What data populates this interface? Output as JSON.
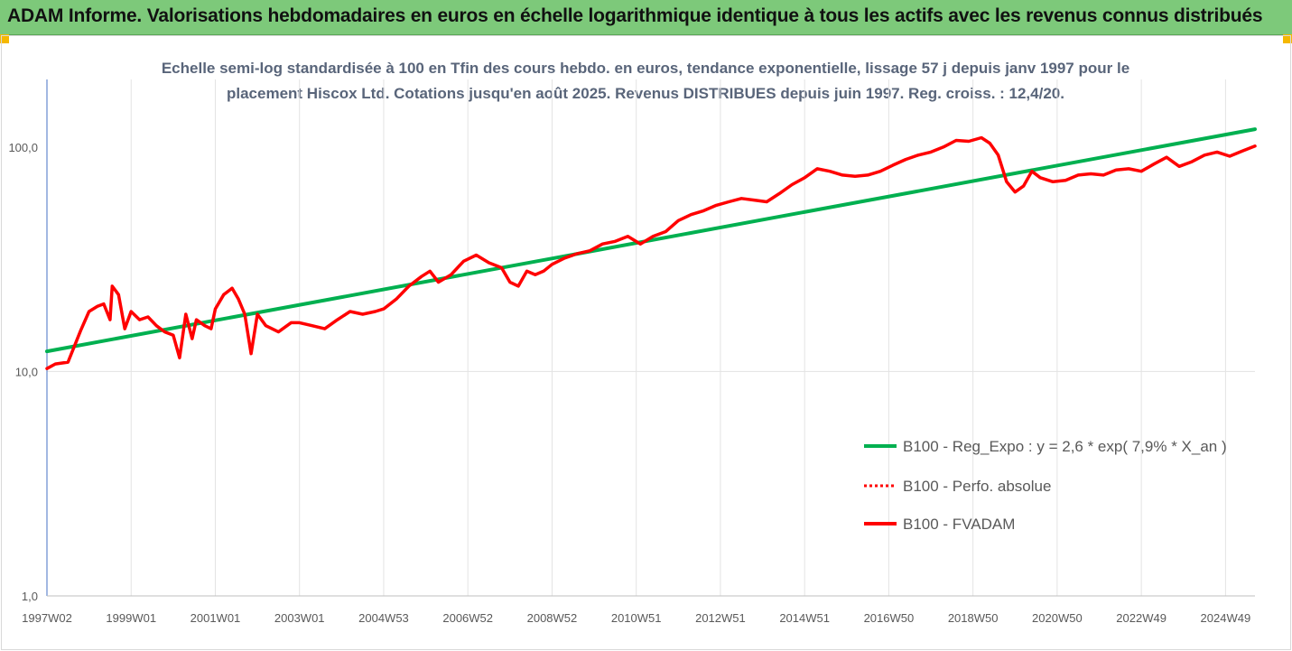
{
  "banner": {
    "title": "ADAM Informe. Valorisations hebdomadaires en euros en échelle logarithmique identique à tous les actifs avec les revenus connus distribués"
  },
  "colors": {
    "banner": "#7dc97a",
    "trend": "#00b050",
    "price": "#ff0000",
    "subtitle": "#59657a",
    "gridline": "#e3e3e3",
    "corner": "#f5b800"
  },
  "chart_data": {
    "type": "line",
    "title": "Echelle semi-log standardisée à 100 en Tfin des cours hebdo. en euros, tendance exponentielle, lissage 57 j depuis janv 1997 pour le placement Hiscox Ltd. Cotations jusqu'en août 2025.  Revenus DISTRIBUES depuis juin 1997. Reg. croiss. : 12,4/20.",
    "title_lines": [
      "Echelle semi-log standardisée à 100 en Tfin des cours hebdo. en euros, tendance exponentielle, lissage 57 j depuis janv 1997 pour le",
      "placement Hiscox Ltd. Cotations jusqu'en août 2025.  Revenus DISTRIBUES depuis juin 1997. Reg. croiss. : 12,4/20."
    ],
    "y_scale": "log",
    "ylim": [
      1,
      200
    ],
    "y_ticks": [
      "1,0",
      "10,0",
      "100,0"
    ],
    "y_tick_values": [
      1,
      10,
      100
    ],
    "xlim": [
      1997.0,
      2025.7
    ],
    "x_ticks": [
      "1997W02",
      "1999W01",
      "2001W01",
      "2003W01",
      "2004W53",
      "2006W52",
      "2008W52",
      "2010W51",
      "2012W51",
      "2014W51",
      "2016W50",
      "2018W50",
      "2020W50",
      "2022W49",
      "2024W49"
    ],
    "x_tick_values": [
      1997.0,
      1999.0,
      2001.0,
      2003.0,
      2005.0,
      2007.0,
      2009.0,
      2011.0,
      2013.0,
      2015.0,
      2017.0,
      2019.0,
      2021.0,
      2023.0,
      2025.0
    ],
    "grid": "vertical",
    "legend_position": "right",
    "series": [
      {
        "name": "B100 - Reg_Expo : y = 2,6 * exp( 7,9% *  X_an )",
        "color": "#00b050",
        "style": "solid",
        "x": [
          1997.0,
          2025.7
        ],
        "y": [
          12.3,
          120
        ]
      },
      {
        "name": "B100 - Perfo. absolue",
        "color": "#ff0000",
        "style": "dotted",
        "x": [],
        "y": []
      },
      {
        "name": "B100 - FVADAM",
        "color": "#ff0000",
        "style": "solid",
        "x": [
          1997.0,
          1997.2,
          1997.5,
          1997.8,
          1998.0,
          1998.2,
          1998.35,
          1998.5,
          1998.55,
          1998.7,
          1998.85,
          1999.0,
          1999.2,
          1999.4,
          1999.6,
          1999.8,
          2000.0,
          2000.15,
          2000.3,
          2000.45,
          2000.55,
          2000.75,
          2000.9,
          2001.0,
          2001.2,
          2001.4,
          2001.55,
          2001.7,
          2001.85,
          2002.0,
          2002.2,
          2002.5,
          2002.8,
          2003.0,
          2003.3,
          2003.6,
          2003.9,
          2004.2,
          2004.5,
          2004.8,
          2005.0,
          2005.3,
          2005.6,
          2005.9,
          2006.1,
          2006.3,
          2006.6,
          2006.9,
          2007.2,
          2007.5,
          2007.8,
          2008.0,
          2008.2,
          2008.4,
          2008.6,
          2008.8,
          2009.0,
          2009.3,
          2009.6,
          2009.9,
          2010.2,
          2010.5,
          2010.8,
          2011.1,
          2011.4,
          2011.7,
          2012.0,
          2012.3,
          2012.6,
          2012.9,
          2013.2,
          2013.5,
          2013.8,
          2014.1,
          2014.4,
          2014.7,
          2015.0,
          2015.3,
          2015.6,
          2015.9,
          2016.2,
          2016.5,
          2016.8,
          2017.1,
          2017.4,
          2017.7,
          2018.0,
          2018.3,
          2018.6,
          2018.9,
          2019.2,
          2019.4,
          2019.6,
          2019.8,
          2020.0,
          2020.2,
          2020.4,
          2020.6,
          2020.9,
          2021.2,
          2021.5,
          2021.8,
          2022.1,
          2022.4,
          2022.7,
          2023.0,
          2023.3,
          2023.6,
          2023.9,
          2024.2,
          2024.5,
          2024.8,
          2025.1,
          2025.4,
          2025.7
        ],
        "y": [
          10.3,
          10.8,
          11.0,
          15.2,
          18.5,
          19.5,
          20.0,
          17.0,
          24.0,
          22.0,
          15.5,
          18.5,
          17.0,
          17.5,
          16.0,
          15.0,
          14.5,
          11.5,
          18.0,
          14.0,
          17.0,
          16.0,
          15.5,
          19.0,
          22.0,
          23.5,
          21.0,
          18.0,
          12.0,
          18.0,
          16.0,
          15.0,
          16.5,
          16.5,
          16.0,
          15.5,
          17.0,
          18.5,
          18.0,
          18.5,
          19.0,
          21.0,
          24.0,
          26.5,
          28.0,
          25.0,
          27.0,
          31.0,
          33.0,
          30.5,
          29.0,
          25.0,
          24.0,
          28.0,
          27.0,
          28.0,
          30.0,
          32.0,
          33.5,
          34.5,
          37.0,
          38.0,
          40.0,
          37.0,
          40.0,
          42.0,
          47.0,
          50.0,
          52.0,
          55.0,
          57.0,
          59.0,
          58.0,
          57.0,
          62.0,
          68.0,
          73.0,
          80.0,
          78.0,
          75.0,
          74.0,
          75.0,
          78.0,
          83.0,
          88.0,
          92.0,
          95.0,
          100.0,
          107.0,
          106.0,
          110.0,
          104.0,
          92.0,
          70.0,
          63.0,
          67.0,
          78.0,
          73.0,
          70.0,
          71.0,
          75.0,
          76.0,
          75.0,
          79.0,
          80.0,
          78.0,
          84.0,
          90.0,
          82.0,
          86.0,
          92.0,
          95.0,
          91.0,
          96.0,
          101.0
        ]
      }
    ]
  }
}
